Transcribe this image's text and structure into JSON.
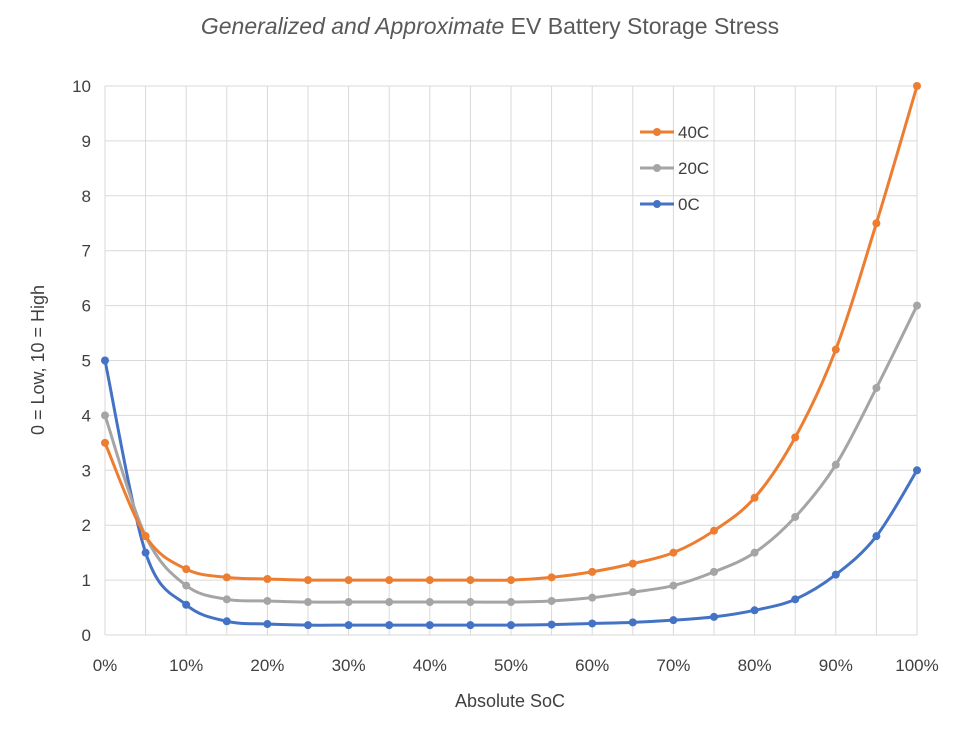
{
  "chart_data": {
    "type": "line",
    "title": {
      "italic": "Generalized and Approximate",
      "rest": " EV Battery Storage Stress"
    },
    "xlabel": "Absolute SoC",
    "ylabel": "0 = Low, 10 = High",
    "x": [
      0,
      5,
      10,
      15,
      20,
      25,
      30,
      35,
      40,
      45,
      50,
      55,
      60,
      65,
      70,
      75,
      80,
      85,
      90,
      95,
      100
    ],
    "x_tick_labels": [
      "0%",
      "10%",
      "20%",
      "30%",
      "40%",
      "50%",
      "60%",
      "70%",
      "80%",
      "90%",
      "100%"
    ],
    "x_ticks": [
      0,
      10,
      20,
      30,
      40,
      50,
      60,
      70,
      80,
      90,
      100
    ],
    "y_ticks": [
      0,
      1,
      2,
      3,
      4,
      5,
      6,
      7,
      8,
      9,
      10
    ],
    "y_tick_labels": [
      "0",
      "1",
      "2",
      "3",
      "4",
      "5",
      "6",
      "7",
      "8",
      "9",
      "10"
    ],
    "xlim": [
      0,
      100
    ],
    "ylim": [
      0,
      10
    ],
    "grid": true,
    "legend_position": "top-right",
    "series": [
      {
        "name": "40C",
        "color": "#ed7d31",
        "values": [
          3.5,
          1.8,
          1.2,
          1.05,
          1.02,
          1.0,
          1.0,
          1.0,
          1.0,
          1.0,
          1.0,
          1.05,
          1.15,
          1.3,
          1.5,
          1.9,
          2.5,
          3.6,
          5.2,
          7.5,
          10.0
        ]
      },
      {
        "name": "20C",
        "color": "#a5a5a5",
        "values": [
          4.0,
          1.8,
          0.9,
          0.65,
          0.62,
          0.6,
          0.6,
          0.6,
          0.6,
          0.6,
          0.6,
          0.62,
          0.68,
          0.78,
          0.9,
          1.15,
          1.5,
          2.15,
          3.1,
          4.5,
          6.0
        ]
      },
      {
        "name": "0C",
        "color": "#4472c4",
        "values": [
          5.0,
          1.5,
          0.55,
          0.25,
          0.2,
          0.18,
          0.18,
          0.18,
          0.18,
          0.18,
          0.18,
          0.19,
          0.21,
          0.23,
          0.27,
          0.33,
          0.45,
          0.65,
          1.1,
          1.8,
          3.0
        ]
      }
    ]
  }
}
